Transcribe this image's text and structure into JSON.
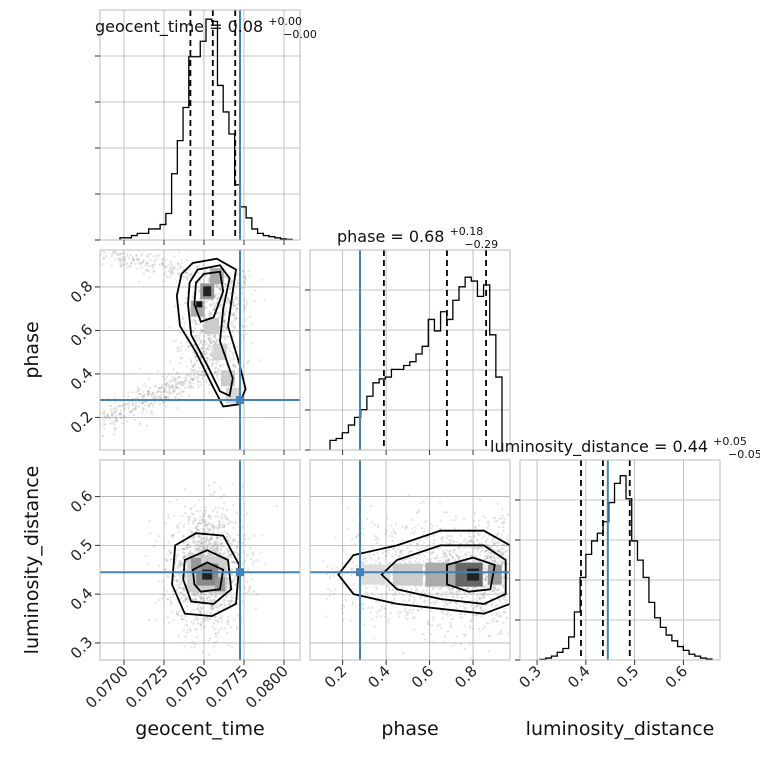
{
  "chart_data": {
    "type": "corner",
    "parameters": [
      {
        "key": "geocent_time",
        "label": "geocent_time",
        "range": [
          0.0685,
          0.081
        ],
        "ticks": [
          0.07,
          0.0725,
          0.075,
          0.0775,
          0.08
        ],
        "tick_labels": [
          "0.0700",
          "0.0725",
          "0.0750",
          "0.0775",
          "0.0800"
        ],
        "truth": 0.07725,
        "title": {
          "main": "geocent_time = 0.08",
          "plus": "+0.00",
          "minus": "−0.00"
        },
        "quantiles": [
          0.07415,
          0.07555,
          0.07695
        ]
      },
      {
        "key": "phase",
        "label": "phase",
        "range": [
          0.05,
          0.97
        ],
        "ticks": [
          0.2,
          0.4,
          0.6,
          0.8
        ],
        "tick_labels": [
          "0.2",
          "0.4",
          "0.6",
          "0.8"
        ],
        "truth": 0.28,
        "title": {
          "main": "phase = 0.68",
          "plus": "+0.18",
          "minus": "−0.29"
        },
        "quantiles": [
          0.39,
          0.68,
          0.86
        ]
      },
      {
        "key": "luminosity_distance",
        "label": "luminosity_distance",
        "range": [
          0.265,
          0.675
        ],
        "ticks": [
          0.3,
          0.4,
          0.5,
          0.6
        ],
        "tick_labels": [
          "0.3",
          "0.4",
          "0.5",
          "0.6"
        ],
        "truth": 0.445,
        "title": {
          "main": "luminosity_distance = 0.44",
          "plus": "+0.05",
          "minus": "−0.05"
        },
        "quantiles": [
          0.39,
          0.435,
          0.49
        ]
      }
    ],
    "histograms": {
      "geocent_time": [
        0.01,
        0.01,
        0.02,
        0.03,
        0.03,
        0.05,
        0.05,
        0.07,
        0.12,
        0.3,
        0.45,
        0.6,
        0.83,
        0.83,
        0.9,
        1.0,
        0.99,
        0.7,
        0.58,
        0.48,
        0.25,
        0.15,
        0.1,
        0.05,
        0.03,
        0.02,
        0.015,
        0.01,
        0.005,
        0.003
      ],
      "phase": [
        0.05,
        0.06,
        0.09,
        0.13,
        0.17,
        0.21,
        0.28,
        0.35,
        0.37,
        0.38,
        0.42,
        0.42,
        0.44,
        0.46,
        0.5,
        0.54,
        0.68,
        0.62,
        0.72,
        0.68,
        0.78,
        0.85,
        0.9,
        0.88,
        0.8,
        0.86,
        0.6,
        0.38
      ],
      "luminosity_distance": [
        0.003,
        0.01,
        0.02,
        0.04,
        0.06,
        0.12,
        0.25,
        0.43,
        0.55,
        0.62,
        0.66,
        0.72,
        0.82,
        0.92,
        0.96,
        0.84,
        0.62,
        0.52,
        0.43,
        0.3,
        0.22,
        0.17,
        0.13,
        0.1,
        0.07,
        0.05,
        0.03,
        0.02,
        0.01,
        0.005
      ]
    },
    "axes_labels": {
      "x": [
        "geocent_time",
        "phase",
        "luminosity_distance"
      ],
      "y": [
        "",
        "phase",
        "luminosity_distance"
      ]
    },
    "colors": {
      "truth": "#4682b4",
      "contour": "#000000",
      "grid": "#b0b0b0"
    }
  }
}
